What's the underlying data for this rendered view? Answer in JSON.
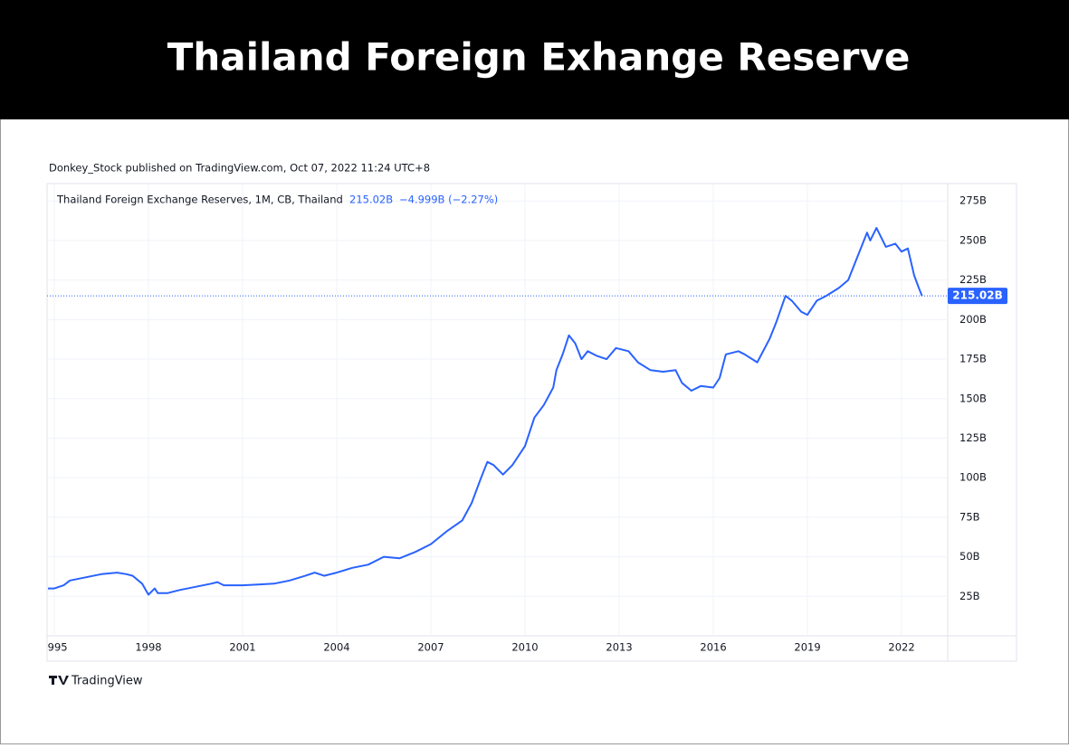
{
  "header": {
    "title": "Thailand Foreign Exhange Reserve"
  },
  "attribution": "Donkey_Stock published on TradingView.com, Oct 07, 2022 11:24 UTC+8",
  "logo": "TradingView",
  "chart_data": {
    "type": "line",
    "x": [
      1994.8,
      1995.0,
      1995.3,
      1995.5,
      1996.0,
      1996.5,
      1997.0,
      1997.3,
      1997.5,
      1997.8,
      1998.0,
      1998.2,
      1998.3,
      1998.6,
      1999.0,
      1999.5,
      2000.0,
      2000.2,
      2000.4,
      2001.0,
      2001.5,
      2002.0,
      2002.5,
      2003.0,
      2003.3,
      2003.6,
      2004.0,
      2004.5,
      2005.0,
      2005.5,
      2006.0,
      2006.5,
      2007.0,
      2007.5,
      2008.0,
      2008.3,
      2008.6,
      2008.8,
      2009.0,
      2009.3,
      2009.6,
      2010.0,
      2010.3,
      2010.6,
      2010.9,
      2011.0,
      2011.2,
      2011.4,
      2011.6,
      2011.8,
      2012.0,
      2012.3,
      2012.6,
      2012.9,
      2013.3,
      2013.6,
      2014.0,
      2014.4,
      2014.8,
      2015.0,
      2015.3,
      2015.6,
      2016.0,
      2016.2,
      2016.4,
      2016.8,
      2017.0,
      2017.4,
      2017.8,
      2018.0,
      2018.3,
      2018.5,
      2018.8,
      2019.0,
      2019.3,
      2019.6,
      2020.0,
      2020.3,
      2020.6,
      2020.9,
      2021.0,
      2021.2,
      2021.5,
      2021.8,
      2022.0,
      2022.2,
      2022.4,
      2022.55,
      2022.65
    ],
    "series": [
      {
        "name": "Thailand Foreign Exchange Reserves, 1M, CB, Thailand",
        "color": "#2962ff",
        "values": [
          30,
          30,
          32,
          35,
          37,
          39,
          40,
          39,
          38,
          33,
          26,
          30,
          27,
          27,
          29,
          31,
          33,
          34,
          32,
          32,
          32.5,
          33,
          35,
          38,
          40,
          38,
          40,
          43,
          45,
          50,
          49,
          53,
          58,
          66,
          73,
          84,
          100,
          110,
          108,
          102,
          108,
          120,
          138,
          146,
          157,
          168,
          178,
          190,
          185,
          175,
          180,
          177,
          175,
          182,
          180,
          173,
          168,
          167,
          168,
          160,
          155,
          158,
          157,
          163,
          178,
          180,
          178,
          173,
          188,
          198,
          215,
          212,
          205,
          203,
          212,
          215,
          220,
          225,
          240,
          255,
          250,
          258,
          246,
          248,
          243,
          245,
          228,
          220,
          215.02
        ]
      }
    ],
    "last_value_label": "215.02B",
    "change": "−4.999B (−2.27%)",
    "xlim": [
      1994.77,
      2023.47
    ],
    "xticks": [
      1995,
      1998,
      2001,
      2004,
      2007,
      2010,
      2013,
      2016,
      2019,
      2022
    ],
    "ylim": [
      0,
      286
    ],
    "yticks": [
      {
        "value": 25,
        "label": "25B"
      },
      {
        "value": 50,
        "label": "50B"
      },
      {
        "value": 75,
        "label": "75B"
      },
      {
        "value": 100,
        "label": "100B"
      },
      {
        "value": 125,
        "label": "125B"
      },
      {
        "value": 150,
        "label": "150B"
      },
      {
        "value": 175,
        "label": "175B"
      },
      {
        "value": 200,
        "label": "200B"
      },
      {
        "value": 225,
        "label": "225B"
      },
      {
        "value": 250,
        "label": "250B"
      },
      {
        "value": 275,
        "label": "275B"
      }
    ],
    "grid": true
  }
}
